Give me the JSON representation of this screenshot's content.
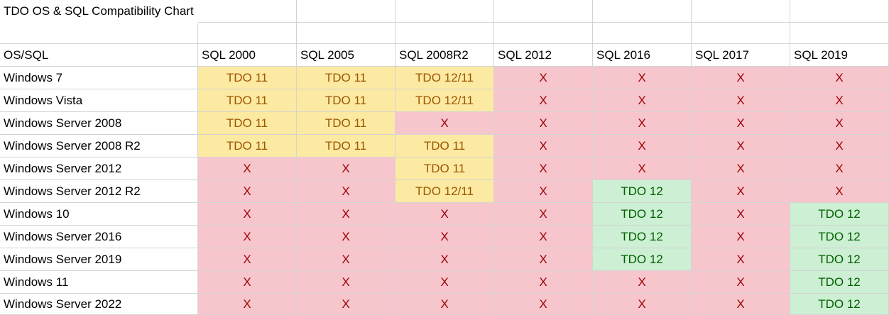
{
  "title": "TDO OS & SQL Compatibility Chart",
  "table": {
    "corner": "OS/SQL",
    "columns": [
      "SQL 2000",
      "SQL 2005",
      "SQL 2008R2",
      "SQL 2012",
      "SQL 2016",
      "SQL 2017",
      "SQL 2019"
    ],
    "rows": [
      {
        "os": "Windows 7",
        "cells": [
          [
            "TDO 11",
            "#fce9a2",
            "#9c5700"
          ],
          [
            "TDO 11",
            "#fce9a2",
            "#9c5700"
          ],
          [
            "TDO 12/11",
            "#fce9a2",
            "#9c5700"
          ],
          [
            "X",
            "#f7c6cc",
            "#9c0006"
          ],
          [
            "X",
            "#f7c6cc",
            "#9c0006"
          ],
          [
            "X",
            "#f7c6cc",
            "#9c0006"
          ],
          [
            "X",
            "#f7c6cc",
            "#9c0006"
          ]
        ]
      },
      {
        "os": "Windows Vista",
        "cells": [
          [
            "TDO 11",
            "#fce9a2",
            "#9c5700"
          ],
          [
            "TDO 11",
            "#fce9a2",
            "#9c5700"
          ],
          [
            "TDO 12/11",
            "#fce9a2",
            "#9c5700"
          ],
          [
            "X",
            "#f7c6cc",
            "#9c0006"
          ],
          [
            "X",
            "#f7c6cc",
            "#9c0006"
          ],
          [
            "X",
            "#f7c6cc",
            "#9c0006"
          ],
          [
            "X",
            "#f7c6cc",
            "#9c0006"
          ]
        ]
      },
      {
        "os": "Windows Server 2008",
        "cells": [
          [
            "TDO 11",
            "#fce9a2",
            "#9c5700"
          ],
          [
            "TDO 11",
            "#fce9a2",
            "#9c5700"
          ],
          [
            "X",
            "#f7c6cc",
            "#9c0006"
          ],
          [
            "X",
            "#f7c6cc",
            "#9c0006"
          ],
          [
            "X",
            "#f7c6cc",
            "#9c0006"
          ],
          [
            "X",
            "#f7c6cc",
            "#9c0006"
          ],
          [
            "X",
            "#f7c6cc",
            "#9c0006"
          ]
        ]
      },
      {
        "os": "Windows Server 2008 R2",
        "cells": [
          [
            "TDO 11",
            "#fce9a2",
            "#9c5700"
          ],
          [
            "TDO 11",
            "#fce9a2",
            "#9c5700"
          ],
          [
            "TDO 11",
            "#fce9a2",
            "#9c5700"
          ],
          [
            "X",
            "#f7c6cc",
            "#9c0006"
          ],
          [
            "X",
            "#f7c6cc",
            "#9c0006"
          ],
          [
            "X",
            "#f7c6cc",
            "#9c0006"
          ],
          [
            "X",
            "#f7c6cc",
            "#9c0006"
          ]
        ]
      },
      {
        "os": "Windows Server 2012",
        "cells": [
          [
            "X",
            "#f7c6cc",
            "#9c0006"
          ],
          [
            "X",
            "#f7c6cc",
            "#9c0006"
          ],
          [
            "TDO 11",
            "#fce9a2",
            "#9c5700"
          ],
          [
            "X",
            "#f7c6cc",
            "#9c0006"
          ],
          [
            "X",
            "#f7c6cc",
            "#9c0006"
          ],
          [
            "X",
            "#f7c6cc",
            "#9c0006"
          ],
          [
            "X",
            "#f7c6cc",
            "#9c0006"
          ]
        ]
      },
      {
        "os": "Windows Server 2012 R2",
        "cells": [
          [
            "X",
            "#f7c6cc",
            "#9c0006"
          ],
          [
            "X",
            "#f7c6cc",
            "#9c0006"
          ],
          [
            "TDO 12/11",
            "#fce9a2",
            "#9c5700"
          ],
          [
            "X",
            "#f7c6cc",
            "#9c0006"
          ],
          [
            "TDO 12",
            "#cdefd3",
            "#006100"
          ],
          [
            "X",
            "#f7c6cc",
            "#9c0006"
          ],
          [
            "X",
            "#f7c6cc",
            "#9c0006"
          ]
        ]
      },
      {
        "os": "Windows 10",
        "cells": [
          [
            "X",
            "#f7c6cc",
            "#9c0006"
          ],
          [
            "X",
            "#f7c6cc",
            "#9c0006"
          ],
          [
            "X",
            "#f7c6cc",
            "#9c0006"
          ],
          [
            "X",
            "#f7c6cc",
            "#9c0006"
          ],
          [
            "TDO 12",
            "#cdefd3",
            "#006100"
          ],
          [
            "X",
            "#f7c6cc",
            "#9c0006"
          ],
          [
            "TDO 12",
            "#cdefd3",
            "#006100"
          ]
        ]
      },
      {
        "os": "Windows Server 2016",
        "cells": [
          [
            "X",
            "#f7c6cc",
            "#9c0006"
          ],
          [
            "X",
            "#f7c6cc",
            "#9c0006"
          ],
          [
            "X",
            "#f7c6cc",
            "#9c0006"
          ],
          [
            "X",
            "#f7c6cc",
            "#9c0006"
          ],
          [
            "TDO 12",
            "#cdefd3",
            "#006100"
          ],
          [
            "X",
            "#f7c6cc",
            "#9c0006"
          ],
          [
            "TDO 12",
            "#cdefd3",
            "#006100"
          ]
        ]
      },
      {
        "os": "Windows Server 2019",
        "cells": [
          [
            "X",
            "#f7c6cc",
            "#9c0006"
          ],
          [
            "X",
            "#f7c6cc",
            "#9c0006"
          ],
          [
            "X",
            "#f7c6cc",
            "#9c0006"
          ],
          [
            "X",
            "#f7c6cc",
            "#9c0006"
          ],
          [
            "TDO 12",
            "#cdefd3",
            "#006100"
          ],
          [
            "X",
            "#f7c6cc",
            "#9c0006"
          ],
          [
            "TDO 12",
            "#cdefd3",
            "#006100"
          ]
        ]
      },
      {
        "os": "Windows 11",
        "cells": [
          [
            "X",
            "#f7c6cc",
            "#9c0006"
          ],
          [
            "X",
            "#f7c6cc",
            "#9c0006"
          ],
          [
            "X",
            "#f7c6cc",
            "#9c0006"
          ],
          [
            "X",
            "#f7c6cc",
            "#9c0006"
          ],
          [
            "X",
            "#f7c6cc",
            "#9c0006"
          ],
          [
            "X",
            "#f7c6cc",
            "#9c0006"
          ],
          [
            "TDO 12",
            "#cdefd3",
            "#006100"
          ]
        ]
      },
      {
        "os": "Windows Server 2022",
        "cells": [
          [
            "X",
            "#f7c6cc",
            "#9c0006"
          ],
          [
            "X",
            "#f7c6cc",
            "#9c0006"
          ],
          [
            "X",
            "#f7c6cc",
            "#9c0006"
          ],
          [
            "X",
            "#f7c6cc",
            "#9c0006"
          ],
          [
            "X",
            "#f7c6cc",
            "#9c0006"
          ],
          [
            "X",
            "#f7c6cc",
            "#9c0006"
          ],
          [
            "TDO 12",
            "#cdefd3",
            "#006100"
          ]
        ]
      }
    ]
  }
}
